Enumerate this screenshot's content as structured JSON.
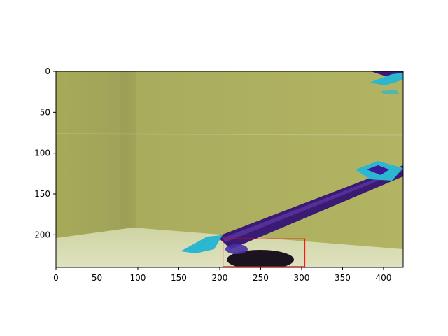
{
  "figure": {
    "xaxis": {
      "range": [
        0,
        424
      ],
      "ticks": [
        0,
        50,
        100,
        150,
        200,
        250,
        300,
        350,
        400
      ],
      "tick_labels": [
        "0",
        "50",
        "100",
        "150",
        "200",
        "250",
        "300",
        "350",
        "400"
      ]
    },
    "yaxis": {
      "range": [
        240,
        0
      ],
      "ticks": [
        0,
        50,
        100,
        150,
        200
      ],
      "tick_labels": [
        "0",
        "50",
        "100",
        "150",
        "200"
      ],
      "inverted": true
    },
    "bounding_box": {
      "x_min": 204,
      "y_min": 205,
      "x_max": 304,
      "y_max": 239,
      "color": "#ff0000"
    },
    "scene": {
      "description_colors": {
        "wall": "#a9ad5b",
        "floor": "#d2d7a8",
        "arm": "#3a1a72",
        "marker": "#2bb7cf",
        "object": "#1b1320"
      }
    }
  }
}
